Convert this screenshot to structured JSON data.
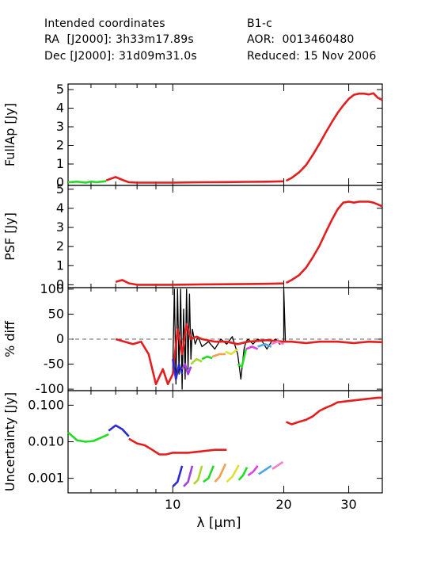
{
  "header": {
    "intended_title": "Intended coordinates",
    "ra_label": "RA  [J2000]: 3h33m17.89s",
    "dec_label": "Dec [J2000]: 31d09m31.0s",
    "target": "B1-c",
    "aor": "AOR:  0013460480",
    "reduced": "Reduced: 15 Nov 2006"
  },
  "chart_data": [
    {
      "type": "line",
      "ylabel": "FullAp [Jy]",
      "x_scale": "log",
      "xlim": [
        5.2,
        37.0
      ],
      "ylim": [
        -0.15,
        5.3
      ],
      "yticks": [
        "0",
        "1",
        "2",
        "3",
        "4",
        "5"
      ],
      "colors": [
        "#22dd22",
        "#e41e1e"
      ],
      "series": [
        {
          "color": "#22dd22",
          "x": [
            5.2,
            5.5,
            5.8,
            6.0,
            6.2,
            6.4,
            6.6
          ],
          "y": [
            0.02,
            0.05,
            0.0,
            0.06,
            0.02,
            0.05,
            0.08
          ]
        },
        {
          "color": "#e41e1e",
          "x": [
            6.6,
            7.0,
            7.3,
            7.6,
            8.0,
            9.0,
            10.0,
            12.0,
            14.0,
            16.0,
            18.0,
            20.0
          ],
          "y": [
            0.12,
            0.3,
            0.15,
            0.02,
            0.0,
            0.0,
            0.0,
            0.02,
            0.03,
            0.04,
            0.05,
            0.07
          ]
        },
        {
          "color": "#e41e1e",
          "x": [
            20.3,
            21.0,
            22.0,
            23.0,
            24.0,
            25.0,
            26.0,
            27.0,
            28.0,
            29.0,
            30.0,
            31.0,
            32.0,
            33.0,
            34.0,
            35.0,
            36.0,
            37.0
          ],
          "y": [
            0.1,
            0.25,
            0.55,
            0.95,
            1.5,
            2.1,
            2.7,
            3.25,
            3.75,
            4.15,
            4.5,
            4.72,
            4.78,
            4.78,
            4.74,
            4.8,
            4.55,
            4.45
          ]
        }
      ]
    },
    {
      "type": "line",
      "ylabel": "PSF [Jy]",
      "x_scale": "log",
      "xlim": [
        5.2,
        37.0
      ],
      "ylim": [
        -0.15,
        5.2
      ],
      "yticks": [
        "0",
        "1",
        "2",
        "3",
        "4",
        "5"
      ],
      "series": [
        {
          "color": "#e41e1e",
          "x": [
            7.0,
            7.3,
            7.6,
            8.0,
            9.0,
            10.0,
            12.0,
            14.0,
            16.0,
            18.0,
            20.0
          ],
          "y": [
            0.15,
            0.25,
            0.08,
            0.0,
            0.0,
            0.0,
            0.02,
            0.03,
            0.04,
            0.05,
            0.07
          ]
        },
        {
          "color": "#e41e1e",
          "x": [
            20.3,
            21.0,
            22.0,
            23.0,
            24.0,
            25.0,
            26.0,
            27.0,
            28.0,
            29.0,
            30.0,
            31.0,
            32.0,
            34.0,
            35.0,
            36.0,
            37.0
          ],
          "y": [
            0.1,
            0.25,
            0.5,
            0.9,
            1.45,
            2.05,
            2.75,
            3.4,
            3.95,
            4.3,
            4.35,
            4.3,
            4.35,
            4.35,
            4.3,
            4.2,
            4.1
          ]
        }
      ]
    },
    {
      "type": "line",
      "ylabel": "% diff",
      "x_scale": "log",
      "xlim": [
        5.2,
        37.0
      ],
      "ylim": [
        -103,
        103
      ],
      "yticks": [
        "100",
        "50",
        "0",
        "-50",
        "-100"
      ],
      "reference_line": 0,
      "series": [
        {
          "color": "#000000",
          "x": [
            10.0,
            10.1,
            10.2,
            10.3,
            10.4,
            10.5,
            10.6,
            10.7,
            10.8,
            10.9,
            11.0,
            11.1,
            11.2,
            11.3,
            11.5,
            11.7,
            12.0,
            12.5,
            13.0,
            13.5,
            14.0,
            14.5,
            15.0,
            15.3,
            15.6,
            15.8,
            16.0,
            16.5,
            17.0,
            17.5,
            18.0,
            18.5,
            19.0,
            19.5,
            20.0,
            20.0,
            20.2
          ],
          "y": [
            -60,
            100,
            -90,
            100,
            -70,
            100,
            -100,
            60,
            -80,
            100,
            -60,
            90,
            -40,
            20,
            -10,
            5,
            -15,
            -5,
            -20,
            0,
            -10,
            5,
            -30,
            -80,
            -20,
            -5,
            0,
            -10,
            0,
            -5,
            -20,
            -5,
            0,
            -10,
            -5,
            100,
            -5
          ]
        },
        {
          "color": "#e41e1e",
          "x": [
            7.0,
            7.4,
            7.8,
            8.2,
            8.6,
            9.0,
            9.4,
            9.7,
            10.0,
            10.3,
            10.6,
            10.9,
            11.2,
            11.6,
            12.0,
            13.0,
            14.0,
            15.0,
            16.0,
            18.0,
            20.0,
            21.0,
            23.0,
            25.0,
            28.0,
            31.0,
            34.0,
            37.0
          ],
          "y": [
            0,
            -5,
            -10,
            -5,
            -30,
            -90,
            -60,
            -90,
            -70,
            20,
            -30,
            30,
            0,
            5,
            0,
            -5,
            -5,
            -10,
            -5,
            -2,
            -5,
            -5,
            -8,
            -5,
            -5,
            -8,
            -5,
            -6
          ]
        },
        {
          "color": "#2a2ad8",
          "x": [
            10.0,
            10.2,
            10.4,
            10.6
          ],
          "y": [
            -40,
            -80,
            -50,
            -70
          ]
        },
        {
          "color": "#a040e0",
          "x": [
            10.6,
            10.8,
            11.0,
            11.2
          ],
          "y": [
            -60,
            -50,
            -70,
            -55
          ]
        },
        {
          "color": "#a8d830",
          "x": [
            11.2,
            11.6,
            12.0
          ],
          "y": [
            -50,
            -40,
            -45
          ]
        },
        {
          "color": "#22dd22",
          "x": [
            12.0,
            12.4,
            12.8
          ],
          "y": [
            -40,
            -35,
            -38
          ]
        },
        {
          "color": "#f0a050",
          "x": [
            12.8,
            13.4,
            13.9
          ],
          "y": [
            -35,
            -30,
            -30
          ]
        },
        {
          "color": "#e0e030",
          "x": [
            13.9,
            14.4,
            15.0
          ],
          "y": [
            -25,
            -30,
            -20
          ]
        },
        {
          "color": "#22dd22",
          "x": [
            15.0,
            15.4,
            15.8
          ],
          "y": [
            -50,
            -55,
            -20
          ]
        },
        {
          "color": "#e040e0",
          "x": [
            15.8,
            16.4,
            17.0
          ],
          "y": [
            -20,
            -15,
            -20
          ]
        },
        {
          "color": "#4aa8e8",
          "x": [
            17.0,
            17.8,
            18.5
          ],
          "y": [
            -15,
            -10,
            -15
          ]
        },
        {
          "color": "#f080c0",
          "x": [
            18.5,
            19.2,
            20.0
          ],
          "y": [
            -10,
            -5,
            -10
          ]
        }
      ]
    },
    {
      "type": "line",
      "ylabel": "Uncertainty [Jy]",
      "x_scale": "log",
      "y_scale": "log",
      "xlim": [
        5.2,
        37.0
      ],
      "ylim": [
        0.0004,
        0.25
      ],
      "yticks": [
        "0.100",
        "0.010",
        "0.001"
      ],
      "xticks": [
        "10",
        "20",
        "30"
      ],
      "xlabel": "λ [μm]",
      "series": [
        {
          "color": "#22dd22",
          "x": [
            5.2,
            5.5,
            5.8,
            6.1,
            6.4,
            6.7
          ],
          "y": [
            0.018,
            0.011,
            0.01,
            0.0105,
            0.013,
            0.016
          ]
        },
        {
          "color": "#2a2ad8",
          "x": [
            6.7,
            7.0,
            7.3,
            7.6
          ],
          "y": [
            0.02,
            0.028,
            0.022,
            0.014
          ]
        },
        {
          "color": "#e41e1e",
          "x": [
            7.6,
            8.0,
            8.4,
            8.8,
            9.2,
            9.6,
            10.0,
            11.0,
            12.0,
            13.0,
            14.0
          ],
          "y": [
            0.012,
            0.009,
            0.008,
            0.006,
            0.0045,
            0.0045,
            0.005,
            0.005,
            0.0055,
            0.006,
            0.006
          ]
        },
        {
          "color": "#2a2ad8",
          "x": [
            10.0,
            10.3,
            10.6
          ],
          "y": [
            0.0006,
            0.0008,
            0.0022
          ]
        },
        {
          "color": "#a040e0",
          "x": [
            10.7,
            11.0,
            11.3
          ],
          "y": [
            0.0006,
            0.0008,
            0.0022
          ]
        },
        {
          "color": "#a8d830",
          "x": [
            11.4,
            11.7,
            12.0
          ],
          "y": [
            0.0007,
            0.0009,
            0.0022
          ]
        },
        {
          "color": "#22dd22",
          "x": [
            12.1,
            12.5,
            12.9
          ],
          "y": [
            0.0008,
            0.001,
            0.0022
          ]
        },
        {
          "color": "#f0a050",
          "x": [
            13.0,
            13.4,
            13.9
          ],
          "y": [
            0.0008,
            0.0011,
            0.0025
          ]
        },
        {
          "color": "#e0e030",
          "x": [
            14.0,
            14.5,
            15.1
          ],
          "y": [
            0.0008,
            0.0011,
            0.0023
          ]
        },
        {
          "color": "#22dd22",
          "x": [
            15.1,
            15.5,
            15.9
          ],
          "y": [
            0.0009,
            0.0012,
            0.002
          ]
        },
        {
          "color": "#e040e0",
          "x": [
            16.0,
            16.5,
            17.0
          ],
          "y": [
            0.0012,
            0.0015,
            0.0022
          ]
        },
        {
          "color": "#4aa8e8",
          "x": [
            17.1,
            17.8,
            18.5
          ],
          "y": [
            0.0013,
            0.0017,
            0.0022
          ]
        },
        {
          "color": "#f080c0",
          "x": [
            18.6,
            19.2,
            19.9
          ],
          "y": [
            0.0018,
            0.0022,
            0.0028
          ]
        },
        {
          "color": "#e41e1e",
          "x": [
            20.3,
            21.0,
            22.0,
            23.0,
            24.0,
            25.0,
            26.0,
            27.0,
            28.0,
            30.0,
            32.0,
            34.0,
            36.0,
            37.0
          ],
          "y": [
            0.035,
            0.03,
            0.035,
            0.04,
            0.05,
            0.07,
            0.085,
            0.1,
            0.12,
            0.13,
            0.14,
            0.15,
            0.16,
            0.16
          ]
        }
      ]
    }
  ]
}
